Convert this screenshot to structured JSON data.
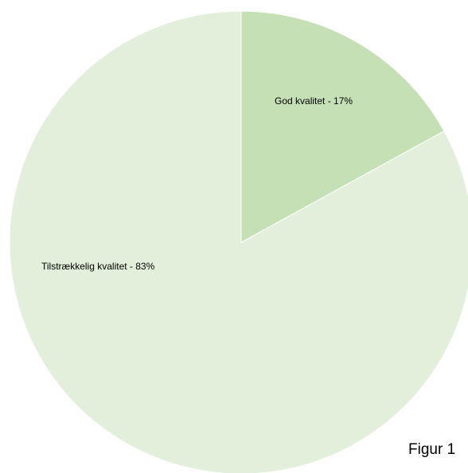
{
  "chart_data": {
    "type": "pie",
    "title": "",
    "slices": [
      {
        "label": "God kvalitet - 17%",
        "value": 17,
        "color": "#c5e0b4"
      },
      {
        "label": "Tilstrækkelig kvalitet - 83%",
        "value": 83,
        "color": "#e2efda"
      }
    ],
    "start_angle": "12 o'clock",
    "direction": "clockwise",
    "legend": "none"
  },
  "caption": "Figur 1"
}
